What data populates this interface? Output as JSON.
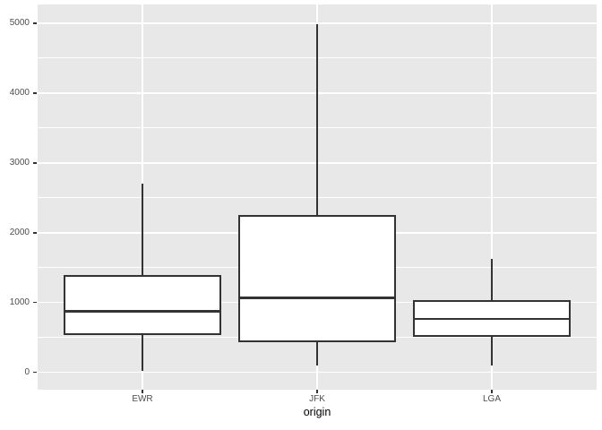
{
  "chart_data": {
    "type": "boxplot",
    "title": "",
    "xlabel": "origin",
    "ylabel": "",
    "categories": [
      "EWR",
      "JFK",
      "LGA"
    ],
    "series": [
      {
        "name": "EWR",
        "whisker_low": 17,
        "q1": 529,
        "median": 872,
        "q3": 1400,
        "whisker_high": 2704
      },
      {
        "name": "JFK",
        "whisker_low": 94,
        "q1": 430,
        "median": 1069,
        "q3": 2248,
        "whisker_high": 4983
      },
      {
        "name": "LGA",
        "whisker_low": 96,
        "q1": 502,
        "median": 762,
        "q3": 1031,
        "whisker_high": 1620
      }
    ],
    "ylim": [
      0,
      5000
    ],
    "yticks": [
      0,
      1000,
      2000,
      3000,
      4000,
      5000
    ],
    "ytick_labels": [
      "0",
      "1000",
      "2000",
      "3000",
      "4000",
      "5000"
    ],
    "yticks_minor": [
      500,
      1500,
      2500,
      3500,
      4500
    ],
    "ylim_expanded": [
      -249,
      5270
    ],
    "xlim_expanded": [
      0.4,
      3.6
    ],
    "box_width": 0.9,
    "grid": true,
    "legend": false,
    "outliers_shown": false,
    "colors": {
      "figure_background": "#FFFFFF",
      "panel_background": "#E8E8E8",
      "gridline": "#FFFFFF",
      "box_stroke": "#333333",
      "box_fill": "#FFFFFF",
      "axis_text": "#4D4D4D",
      "axis_title": "#000000",
      "tick_mark": "#333333"
    }
  }
}
